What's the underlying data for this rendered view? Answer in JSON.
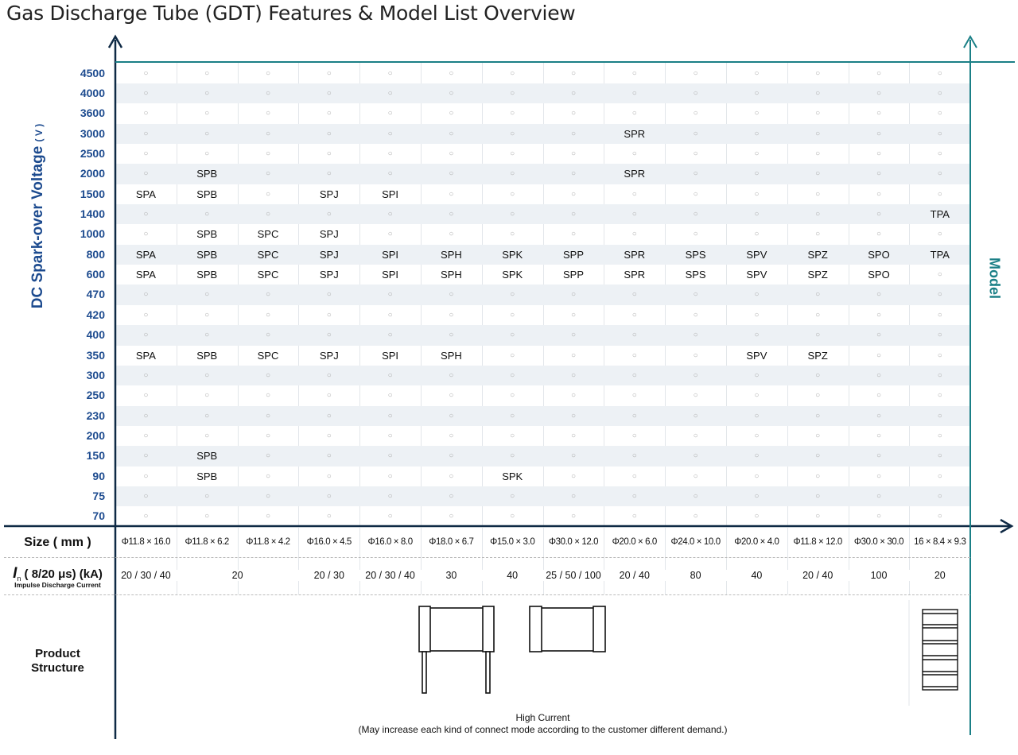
{
  "chart_data": {
    "type": "table",
    "title": "Gas Discharge Tube (GDT) Features & Model List Overview",
    "ylabel": "DC Spark-over Voltage",
    "ylabel_unit": "( V )",
    "right_label": "Model",
    "empty_marker": "○",
    "voltages": [
      "4500",
      "4000",
      "3600",
      "3000",
      "2500",
      "2000",
      "1500",
      "1400",
      "1000",
      "800",
      "600",
      "470",
      "420",
      "400",
      "350",
      "300",
      "250",
      "230",
      "200",
      "150",
      "90",
      "75",
      "70"
    ],
    "grid": [
      [
        "",
        "",
        "",
        "",
        "",
        "",
        "",
        "",
        "",
        "",
        "",
        "",
        "",
        ""
      ],
      [
        "",
        "",
        "",
        "",
        "",
        "",
        "",
        "",
        "",
        "",
        "",
        "",
        "",
        ""
      ],
      [
        "",
        "",
        "",
        "",
        "",
        "",
        "",
        "",
        "",
        "",
        "",
        "",
        "",
        ""
      ],
      [
        "",
        "",
        "",
        "",
        "",
        "",
        "",
        "",
        "SPR",
        "",
        "",
        "",
        "",
        ""
      ],
      [
        "",
        "",
        "",
        "",
        "",
        "",
        "",
        "",
        "",
        "",
        "",
        "",
        "",
        ""
      ],
      [
        "",
        "SPB",
        "",
        "",
        "",
        "",
        "",
        "",
        "SPR",
        "",
        "",
        "",
        "",
        ""
      ],
      [
        "SPA",
        "SPB",
        "",
        "SPJ",
        "SPI",
        "",
        "",
        "",
        "",
        "",
        "",
        "",
        "",
        ""
      ],
      [
        "",
        "",
        "",
        "",
        "",
        "",
        "",
        "",
        "",
        "",
        "",
        "",
        "",
        "TPA"
      ],
      [
        "",
        "SPB",
        "SPC",
        "SPJ",
        "",
        "",
        "",
        "",
        "",
        "",
        "",
        "",
        "",
        ""
      ],
      [
        "SPA",
        "SPB",
        "SPC",
        "SPJ",
        "SPI",
        "SPH",
        "SPK",
        "SPP",
        "SPR",
        "SPS",
        "SPV",
        "SPZ",
        "SPO",
        "TPA"
      ],
      [
        "SPA",
        "SPB",
        "SPC",
        "SPJ",
        "SPI",
        "SPH",
        "SPK",
        "SPP",
        "SPR",
        "SPS",
        "SPV",
        "SPZ",
        "SPO",
        ""
      ],
      [
        "",
        "",
        "",
        "",
        "",
        "",
        "",
        "",
        "",
        "",
        "",
        "",
        "",
        ""
      ],
      [
        "",
        "",
        "",
        "",
        "",
        "",
        "",
        "",
        "",
        "",
        "",
        "",
        "",
        ""
      ],
      [
        "",
        "",
        "",
        "",
        "",
        "",
        "",
        "",
        "",
        "",
        "",
        "",
        "",
        ""
      ],
      [
        "SPA",
        "SPB",
        "SPC",
        "SPJ",
        "SPI",
        "SPH",
        "",
        "",
        "",
        "",
        "SPV",
        "SPZ",
        "",
        ""
      ],
      [
        "",
        "",
        "",
        "",
        "",
        "",
        "",
        "",
        "",
        "",
        "",
        "",
        "",
        ""
      ],
      [
        "",
        "",
        "",
        "",
        "",
        "",
        "",
        "",
        "",
        "",
        "",
        "",
        "",
        ""
      ],
      [
        "",
        "",
        "",
        "",
        "",
        "",
        "",
        "",
        "",
        "",
        "",
        "",
        "",
        ""
      ],
      [
        "",
        "",
        "",
        "",
        "",
        "",
        "",
        "",
        "",
        "",
        "",
        "",
        "",
        ""
      ],
      [
        "",
        "SPB",
        "",
        "",
        "",
        "",
        "",
        "",
        "",
        "",
        "",
        "",
        "",
        ""
      ],
      [
        "",
        "SPB",
        "",
        "",
        "",
        "",
        "SPK",
        "",
        "",
        "",
        "",
        "",
        "",
        ""
      ],
      [
        "",
        "",
        "",
        "",
        "",
        "",
        "",
        "",
        "",
        "",
        "",
        "",
        "",
        ""
      ],
      [
        "",
        "",
        "",
        "",
        "",
        "",
        "",
        "",
        "",
        "",
        "",
        "",
        "",
        ""
      ]
    ],
    "size_label": "Size ( mm )",
    "sizes": [
      "Φ11.8 × 16.0",
      "Φ11.8 × 6.2",
      "Φ11.8 × 4.2",
      "Φ16.0 × 4.5",
      "Φ16.0 × 8.0",
      "Φ18.0 × 6.7",
      "Φ15.0 × 3.0",
      "Φ30.0 × 12.0",
      "Φ20.0 × 6.0",
      "Φ24.0 × 10.0",
      "Φ20.0 × 4.0",
      "Φ11.8 × 12.0",
      "Φ30.0 × 30.0",
      "16 × 8.4 × 9.3"
    ],
    "current_label_symbol": "I",
    "current_label_sub": "n",
    "current_label": "( 8/20 μs) (kA)",
    "current_sublabel": "Impulse Discharge Current",
    "currents": [
      {
        "value": "20 / 30 / 40",
        "span": 1
      },
      {
        "value": "20",
        "span": 2
      },
      {
        "value": "20 / 30",
        "span": 1
      },
      {
        "value": "20 / 30 / 40",
        "span": 1
      },
      {
        "value": "30",
        "span": 1
      },
      {
        "value": "40",
        "span": 1
      },
      {
        "value": "25 / 50 / 100",
        "span": 1
      },
      {
        "value": "20 / 40",
        "span": 1
      },
      {
        "value": "80",
        "span": 1
      },
      {
        "value": "40",
        "span": 1
      },
      {
        "value": "20 / 40",
        "span": 1
      },
      {
        "value": "100",
        "span": 1
      },
      {
        "value": "20",
        "span": 1
      }
    ],
    "structure_label_1": "Product",
    "structure_label_2": "Structure",
    "note_1": "High Current",
    "note_2": "(May increase each kind of connect mode according to the customer different demand.)",
    "colors": {
      "left_axis": "#0f2a45",
      "right_axis": "#1a7f86",
      "voltage_text": "#1d4b8f",
      "stripe": "#edf1f5"
    }
  }
}
